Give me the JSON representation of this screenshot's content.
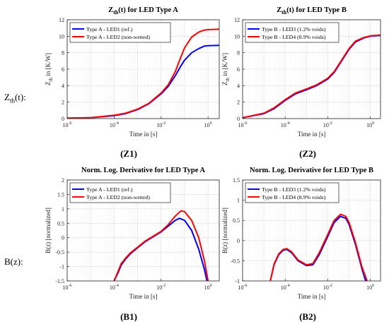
{
  "row_labels": {
    "top": {
      "main": "Z",
      "sub": "th",
      "suffix": "(t):"
    },
    "bottom": {
      "text": "B(z):"
    }
  },
  "captions": [
    "(Z1)",
    "(Z2)",
    "(B1)",
    "(B2)"
  ],
  "chart_data": [
    {
      "type": "line",
      "title": "Z_th(t) for LED Type A",
      "title_parts": {
        "main": "Z",
        "sub": "th",
        "rest": "(t) for LED Type A"
      },
      "xlabel": "Time in [s]",
      "ylabel": "Z_th in [K/W]",
      "ylabel_parts": {
        "main": "Z",
        "sub": "th",
        "rest": " in [K/W]"
      },
      "xscale": "log",
      "xlim": [
        1e-06,
        3
      ],
      "ylim": [
        0,
        12
      ],
      "xticks": [
        1e-06,
        0.0001,
        0.01,
        1
      ],
      "xtick_labels": [
        {
          "b": "10",
          "e": "-6"
        },
        {
          "b": "10",
          "e": "-4"
        },
        {
          "b": "10",
          "e": "-2"
        },
        {
          "b": "10",
          "e": "0"
        }
      ],
      "yticks": [
        0,
        2,
        4,
        6,
        8,
        10,
        12
      ],
      "ytick_labels": [
        "0",
        "2",
        "4",
        "6",
        "8",
        "10",
        "12"
      ],
      "grid": true,
      "legend": "top-left",
      "series": [
        {
          "name": "Type A - LED1 (ref.)",
          "color": "#0000ff",
          "x": [
            1e-06,
            1e-05,
            0.0001,
            0.0003,
            0.001,
            0.003,
            0.01,
            0.02,
            0.04,
            0.07,
            0.1,
            0.2,
            0.4,
            0.7,
            1,
            3
          ],
          "y": [
            0.05,
            0.1,
            0.35,
            0.6,
            1.1,
            1.8,
            3.0,
            3.9,
            5.2,
            6.4,
            7.1,
            8.0,
            8.5,
            8.8,
            8.85,
            8.9
          ]
        },
        {
          "name": "Type A - LED2 (non-wetted)",
          "color": "#ff0000",
          "x": [
            1e-06,
            1e-05,
            0.0001,
            0.0003,
            0.001,
            0.003,
            0.01,
            0.02,
            0.04,
            0.07,
            0.1,
            0.2,
            0.4,
            0.7,
            1,
            3
          ],
          "y": [
            0.05,
            0.1,
            0.4,
            0.65,
            1.15,
            1.85,
            3.1,
            4.1,
            5.7,
            7.5,
            8.6,
            9.9,
            10.5,
            10.75,
            10.8,
            10.85
          ]
        }
      ]
    },
    {
      "type": "line",
      "title": "Z_th(t) for LED Type B",
      "title_parts": {
        "main": "Z",
        "sub": "th",
        "rest": "(t) for LED Type B"
      },
      "xlabel": "Time in [s]",
      "ylabel": "Z_th in [K/W]",
      "ylabel_parts": {
        "main": "Z",
        "sub": "th",
        "rest": " in [K/W]"
      },
      "xscale": "log",
      "xlim": [
        1e-06,
        3
      ],
      "ylim": [
        0,
        12
      ],
      "xticks": [
        1e-06,
        0.0001,
        0.01,
        1
      ],
      "xtick_labels": [
        {
          "b": "10",
          "e": "-6"
        },
        {
          "b": "10",
          "e": "-4"
        },
        {
          "b": "10",
          "e": "-2"
        },
        {
          "b": "10",
          "e": "0"
        }
      ],
      "yticks": [
        0,
        2,
        4,
        6,
        8,
        10,
        12
      ],
      "ytick_labels": [
        "0",
        "2",
        "4",
        "6",
        "8",
        "10",
        "12"
      ],
      "grid": true,
      "legend": "top-left",
      "series": [
        {
          "name": "Type B - LED3 (1.2% voids)",
          "color": "#0000ff",
          "x": [
            1e-06,
            1e-05,
            3e-05,
            0.0001,
            0.0003,
            0.001,
            0.003,
            0.01,
            0.02,
            0.05,
            0.1,
            0.2,
            0.5,
            1,
            3
          ],
          "y": [
            0.1,
            0.6,
            1.2,
            2.2,
            3.0,
            3.5,
            4.0,
            4.8,
            5.6,
            7.2,
            8.4,
            9.3,
            9.8,
            10.0,
            10.1
          ]
        },
        {
          "name": "Type B - LED4 (8.9% voids)",
          "color": "#ff0000",
          "x": [
            1e-06,
            1e-05,
            3e-05,
            0.0001,
            0.0003,
            0.001,
            0.003,
            0.01,
            0.02,
            0.05,
            0.1,
            0.2,
            0.5,
            1,
            3
          ],
          "y": [
            0.1,
            0.65,
            1.3,
            2.3,
            3.1,
            3.6,
            4.1,
            4.9,
            5.7,
            7.3,
            8.5,
            9.4,
            9.85,
            10.05,
            10.15
          ]
        }
      ]
    },
    {
      "type": "line",
      "title": "Norm. Log. Derivative for LED Type A",
      "xlabel": "Time in [s]",
      "ylabel": "B(z) [normalized]",
      "xscale": "log",
      "xlim": [
        1e-06,
        3
      ],
      "ylim": [
        -1.5,
        2
      ],
      "xticks": [
        1e-06,
        0.0001,
        0.01,
        1
      ],
      "xtick_labels": [
        {
          "b": "10",
          "e": "-6"
        },
        {
          "b": "10",
          "e": "-4"
        },
        {
          "b": "10",
          "e": "-2"
        },
        {
          "b": "10",
          "e": "0"
        }
      ],
      "yticks": [
        -1.5,
        -1,
        -0.5,
        0,
        0.5,
        1,
        1.5,
        2
      ],
      "ytick_labels": [
        "-1.5",
        "-1",
        "-0.5",
        "0",
        "0.5",
        "1",
        "1.5",
        "2"
      ],
      "grid": true,
      "legend": "top-left",
      "series": [
        {
          "name": "Type A - LED1 (ref.)",
          "color": "#0000ff",
          "x": [
            0.0001,
            0.00015,
            0.0002,
            0.0003,
            0.0005,
            0.001,
            0.002,
            0.005,
            0.01,
            0.02,
            0.04,
            0.06,
            0.1,
            0.2,
            0.4,
            0.7,
            0.9
          ],
          "y": [
            -1.5,
            -1.2,
            -0.95,
            -0.75,
            -0.55,
            -0.35,
            -0.15,
            0.05,
            0.2,
            0.4,
            0.6,
            0.67,
            0.6,
            0.25,
            -0.4,
            -1.1,
            -1.5
          ]
        },
        {
          "name": "Type A - LED2 (non-wetted)",
          "color": "#ff0000",
          "x": [
            0.0001,
            0.00015,
            0.0002,
            0.0003,
            0.0005,
            0.001,
            0.002,
            0.005,
            0.01,
            0.02,
            0.04,
            0.07,
            0.1,
            0.2,
            0.4,
            0.7,
            1.0
          ],
          "y": [
            -1.5,
            -1.15,
            -0.9,
            -0.72,
            -0.52,
            -0.33,
            -0.13,
            0.07,
            0.22,
            0.45,
            0.75,
            0.93,
            0.9,
            0.6,
            0.0,
            -0.8,
            -1.5
          ]
        }
      ]
    },
    {
      "type": "line",
      "title": "Norm. Log. Derivative for LED Type B",
      "xlabel": "Time in [s]",
      "ylabel": "B(z) [normalized]",
      "xscale": "log",
      "xlim": [
        1e-06,
        3
      ],
      "ylim": [
        -1,
        1.5
      ],
      "xticks": [
        1e-06,
        0.0001,
        0.01,
        1
      ],
      "xtick_labels": [
        {
          "b": "10",
          "e": "-6"
        },
        {
          "b": "10",
          "e": "-4"
        },
        {
          "b": "10",
          "e": "-2"
        },
        {
          "b": "10",
          "e": "0"
        }
      ],
      "yticks": [
        -1,
        -0.5,
        0,
        0.5,
        1,
        1.5
      ],
      "ytick_labels": [
        "-1",
        "-0.5",
        "0",
        "0.5",
        "1",
        "1.5"
      ],
      "grid": true,
      "legend": "top-left",
      "series": [
        {
          "name": "Type B - LED3 (1.2% voids)",
          "color": "#0000ff",
          "x": [
            2e-05,
            3e-05,
            5e-05,
            8e-05,
            0.00012,
            0.0002,
            0.0004,
            0.001,
            0.002,
            0.004,
            0.01,
            0.02,
            0.04,
            0.07,
            0.1,
            0.2,
            0.4,
            0.6
          ],
          "y": [
            -1.0,
            -0.6,
            -0.35,
            -0.24,
            -0.22,
            -0.3,
            -0.5,
            -0.62,
            -0.6,
            -0.35,
            0.1,
            0.45,
            0.6,
            0.55,
            0.4,
            -0.1,
            -0.7,
            -1.0
          ]
        },
        {
          "name": "Type B - LED4 (8.9% voids)",
          "color": "#ff0000",
          "x": [
            2e-05,
            3e-05,
            5e-05,
            8e-05,
            0.00012,
            0.0002,
            0.0004,
            0.001,
            0.002,
            0.004,
            0.01,
            0.02,
            0.04,
            0.07,
            0.1,
            0.2,
            0.4,
            0.7
          ],
          "y": [
            -1.0,
            -0.58,
            -0.33,
            -0.22,
            -0.2,
            -0.28,
            -0.48,
            -0.6,
            -0.57,
            -0.3,
            0.15,
            0.5,
            0.65,
            0.6,
            0.45,
            -0.05,
            -0.65,
            -1.0
          ]
        }
      ]
    }
  ]
}
